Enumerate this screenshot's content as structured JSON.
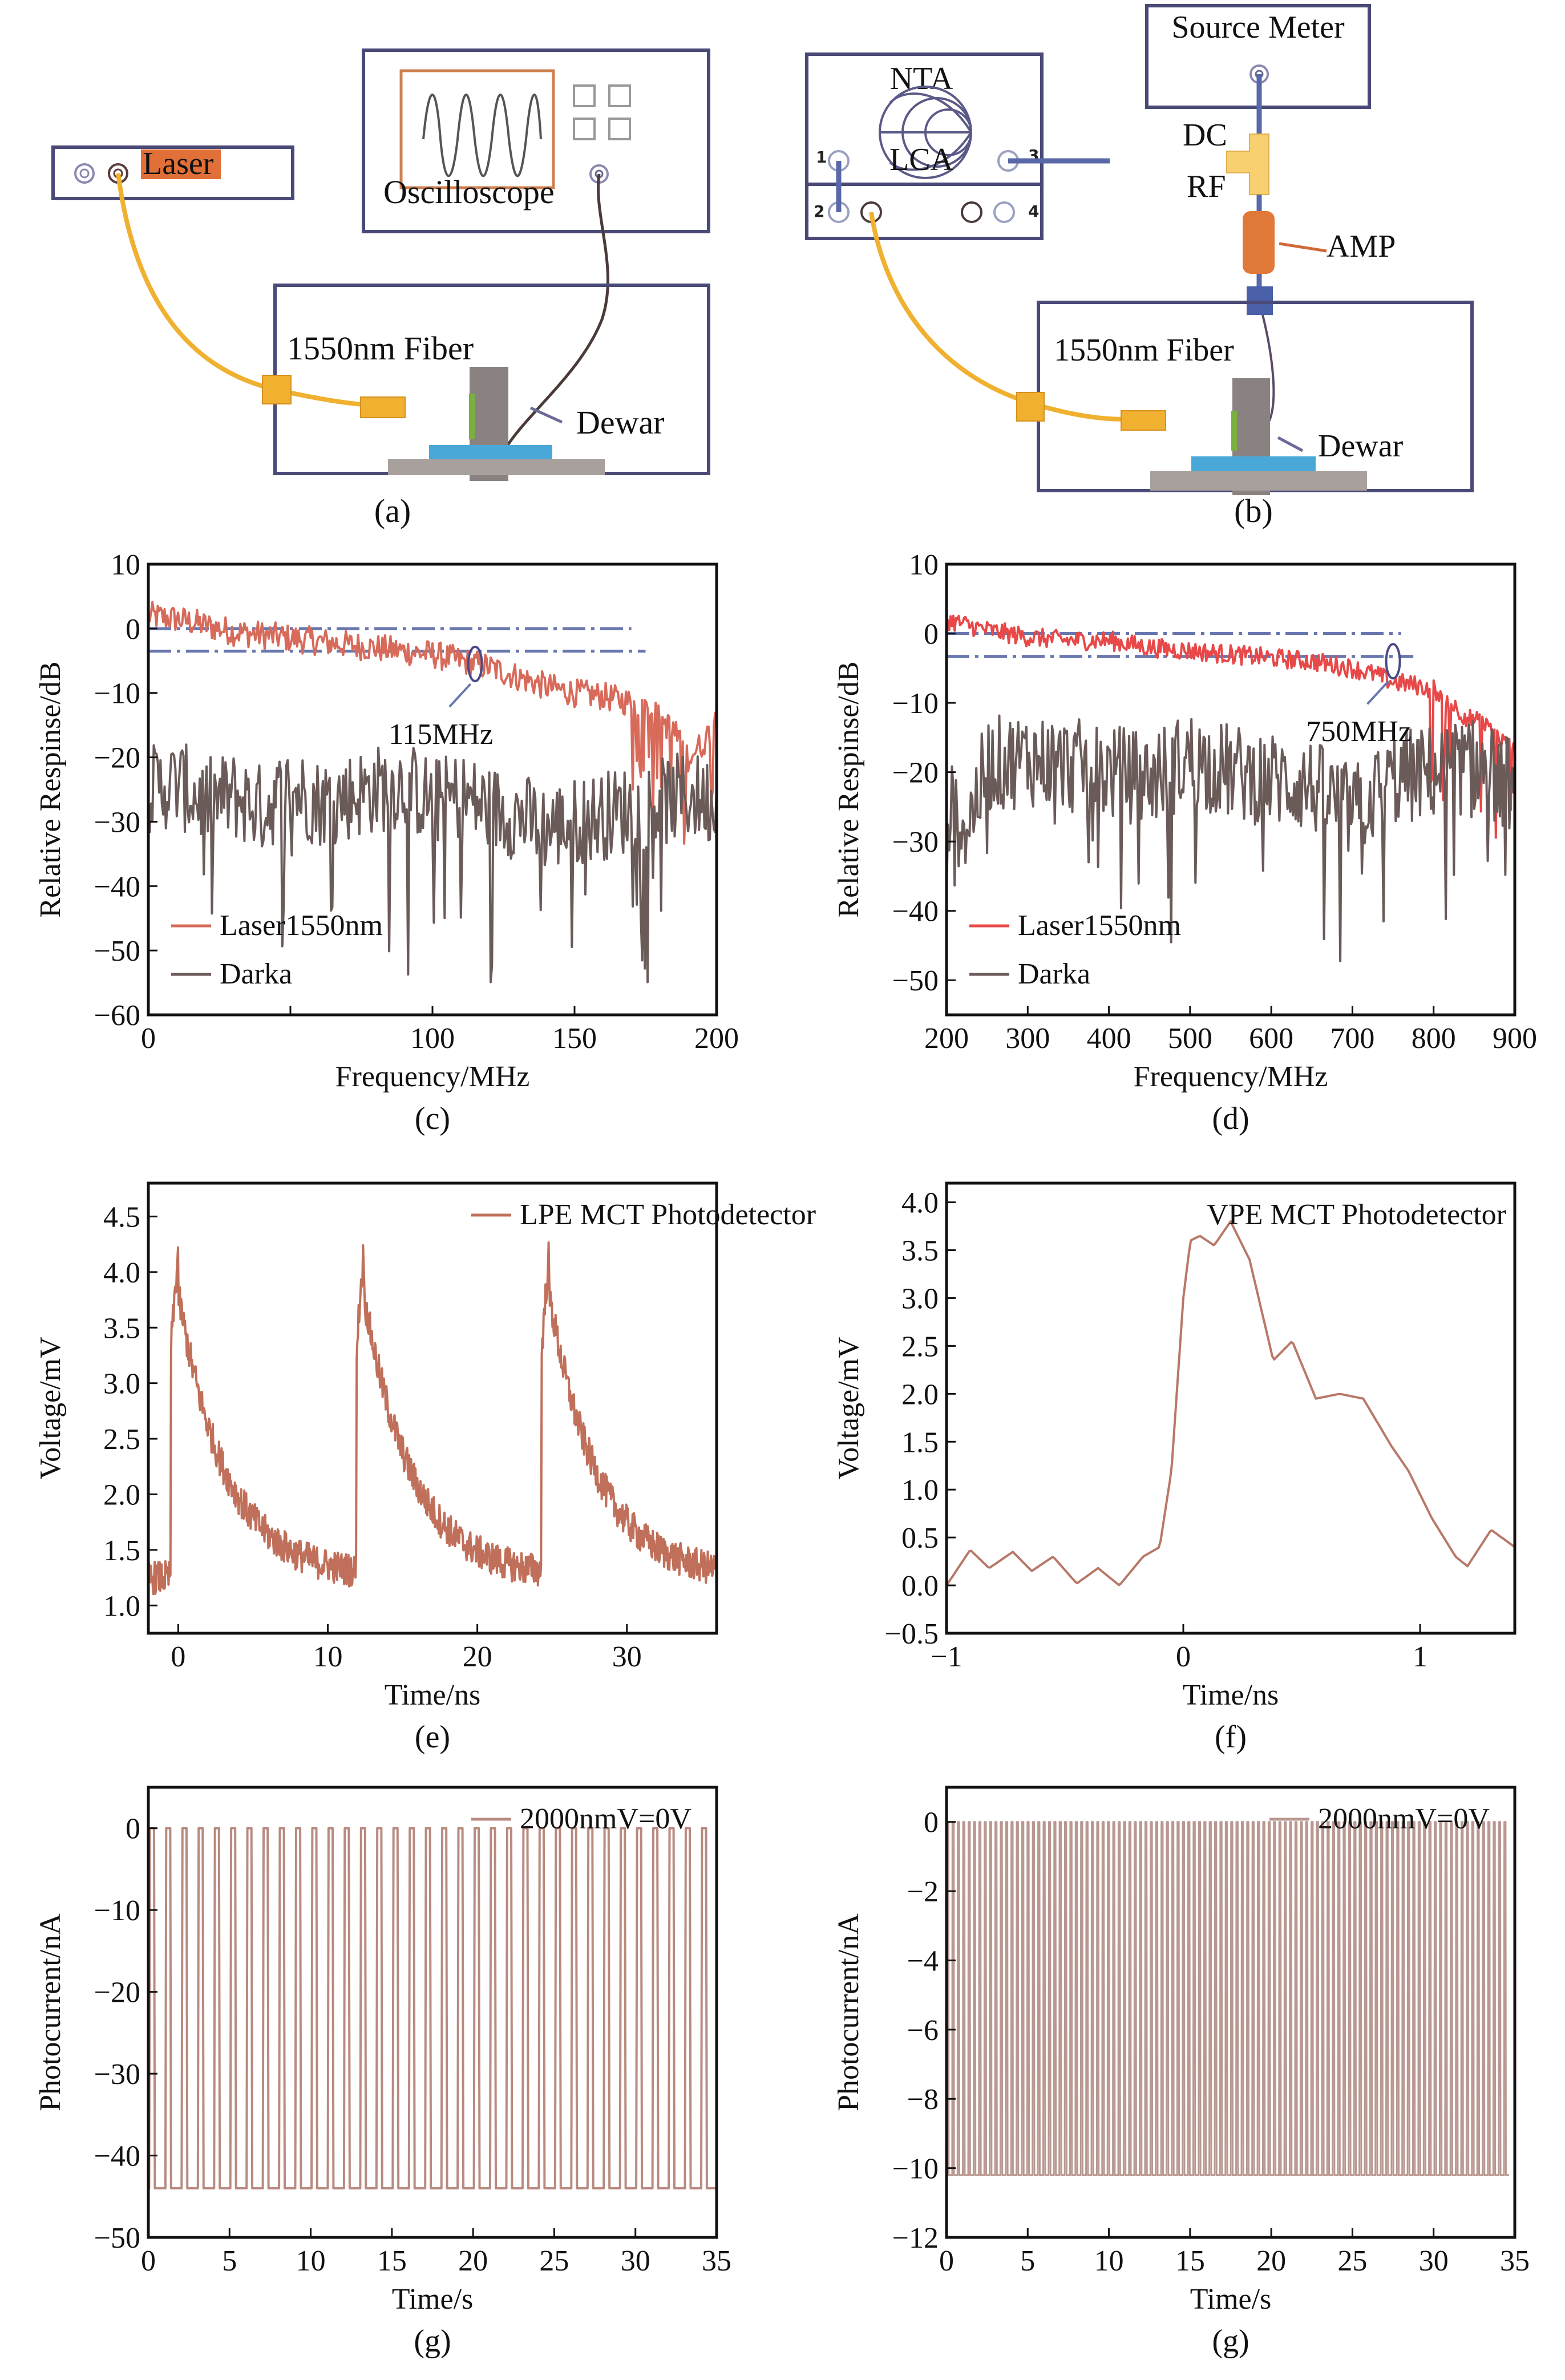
{
  "panels": {
    "a": {
      "caption": "(a)",
      "laser_label": "Laser",
      "oscilloscope_label": "Oscilloscope",
      "fiber_label": "1550nm Fiber",
      "dewar_label": "Dewar"
    },
    "b": {
      "caption": "(b)",
      "source_meter_label": "Source Meter",
      "nta_label": "NTA",
      "lca_label": "LCA",
      "port_labels": [
        "1",
        "2",
        "3",
        "4"
      ],
      "dc_label": "DC",
      "rf_label": "RF",
      "amp_label": "AMP",
      "fiber_label": "1550nm Fiber",
      "dewar_label": "Dewar"
    }
  },
  "colors": {
    "frame": "#4a4a78",
    "fiber": "#f0b030",
    "laser_red": "#e85050",
    "trace_brown": "#c0705a",
    "dark_gray": "#6a5a58",
    "dashed_blue": "#6a78b0",
    "amp_orange": "#e07838",
    "stage_blue": "#4aa8d8",
    "stage_gray": "#a8a09c",
    "dewar_gray": "#8a8280"
  },
  "chart_data": [
    {
      "id": "c",
      "caption": "(c)",
      "type": "line",
      "xlabel": "Frequency/MHz",
      "ylabel": "Relative Respinse/dB",
      "xlim": [
        0,
        200
      ],
      "ylim": [
        -60,
        10
      ],
      "xticks": [
        0,
        50,
        100,
        150,
        200
      ],
      "xtick_labels": [
        "0",
        "",
        "100",
        "150",
        "200"
      ],
      "yticks": [
        10,
        0,
        -10,
        -20,
        -30,
        -40,
        -50,
        -60
      ],
      "ytick_labels": [
        "10",
        "0",
        "−10",
        "−20",
        "−30",
        "−40",
        "−50",
        "−60"
      ],
      "reference_lines": [
        0,
        -3.5
      ],
      "reference_xmax": [
        170,
        175
      ],
      "annotation": {
        "text": "115MHz",
        "x": 115,
        "y": -5.5
      },
      "legend": {
        "placement": "bottom-left",
        "entries": [
          "Laser1550nm",
          "Darka"
        ]
      },
      "series": [
        {
          "name": "Laser1550nm",
          "color": "#d86a5a",
          "x": [
            0,
            10,
            20,
            30,
            40,
            50,
            60,
            70,
            80,
            90,
            100,
            110,
            115,
            120,
            130,
            140,
            150,
            160,
            170,
            175,
            180,
            185,
            190,
            195,
            200
          ],
          "y": [
            2,
            1.5,
            0.5,
            -0.5,
            -1,
            -1.5,
            -2,
            -2.5,
            -3,
            -3.5,
            -4,
            -5,
            -5.5,
            -6,
            -7.5,
            -9,
            -10,
            -10.5,
            -11.5,
            -12,
            -14,
            -16,
            -20,
            -18,
            -14
          ]
        },
        {
          "name": "Darka",
          "color": "#6a5a58",
          "x": [
            0,
            10,
            20,
            30,
            40,
            50,
            60,
            70,
            80,
            90,
            100,
            110,
            120,
            130,
            140,
            150,
            160,
            170,
            180,
            190,
            200
          ],
          "y": [
            -25,
            -24,
            -27,
            -26,
            -28,
            -25,
            -27,
            -26,
            -25,
            -24,
            -27,
            -26,
            -28,
            -29,
            -31,
            -30,
            -29,
            -28,
            -27,
            -26,
            -27
          ]
        }
      ]
    },
    {
      "id": "d",
      "caption": "(d)",
      "type": "line",
      "xlabel": "Frequency/MHz",
      "ylabel": "Relative Respinse/dB",
      "xlim": [
        200,
        900
      ],
      "ylim": [
        -55,
        10
      ],
      "xticks": [
        200,
        300,
        400,
        500,
        600,
        700,
        800,
        900
      ],
      "xtick_labels": [
        "200",
        "300",
        "400",
        "500",
        "600",
        "700",
        "800",
        "900"
      ],
      "yticks": [
        10,
        0,
        -10,
        -20,
        -30,
        -40,
        -50
      ],
      "ytick_labels": [
        "10",
        "0",
        "−10",
        "−20",
        "−30",
        "−40",
        "−50"
      ],
      "reference_lines": [
        0,
        -3.3
      ],
      "reference_xmax": [
        760,
        775
      ],
      "annotation": {
        "text": "750MHz",
        "x": 750,
        "y": -4
      },
      "legend": {
        "placement": "bottom-left",
        "entries": [
          "Laser1550nm",
          "Darka"
        ]
      },
      "series": [
        {
          "name": "Laser1550nm",
          "color": "#e84848",
          "x": [
            200,
            250,
            300,
            350,
            400,
            450,
            500,
            550,
            600,
            650,
            700,
            730,
            750,
            780,
            800,
            820,
            840,
            860,
            880,
            900
          ],
          "y": [
            2,
            0.5,
            -0.5,
            -1,
            -1,
            -2,
            -2.5,
            -3,
            -3.5,
            -4,
            -5,
            -6,
            -7,
            -7.5,
            -8,
            -10,
            -12,
            -13,
            -15,
            -17
          ]
        },
        {
          "name": "Darka",
          "color": "#6a5a58",
          "x": [
            200,
            225,
            250,
            300,
            350,
            400,
            450,
            500,
            550,
            600,
            650,
            700,
            750,
            800,
            850,
            900
          ],
          "y": [
            -25,
            -28,
            -19,
            -18,
            -19,
            -20,
            -21,
            -18,
            -20,
            -21,
            -22,
            -26,
            -21,
            -20,
            -19,
            -22
          ]
        }
      ]
    },
    {
      "id": "e",
      "caption": "(e)",
      "type": "line",
      "xlabel": "Time/ns",
      "ylabel": "Voltage/mV",
      "xlim": [
        -2,
        36
      ],
      "ylim": [
        0.75,
        4.8
      ],
      "xticks": [
        0,
        10,
        20,
        30
      ],
      "xtick_labels": [
        "0",
        "10",
        "20",
        "30"
      ],
      "yticks": [
        1.0,
        1.5,
        2.0,
        2.5,
        3.0,
        3.5,
        4.0,
        4.5
      ],
      "ytick_labels": [
        "1.0",
        "1.5",
        "2.0",
        "2.5",
        "3.0",
        "3.5",
        "4.0",
        "4.5"
      ],
      "legend": {
        "placement": "top-right",
        "entries": [
          "LPE MCT Photodetector"
        ]
      },
      "pulse_period_ns": 12.4,
      "pulse_peaks_ns": [
        0,
        12.4,
        24.8
      ],
      "series": [
        {
          "name": "LPE MCT Photodetector",
          "color": "#c0705a",
          "peak": 4.2,
          "baseline": 1.25,
          "pre_peak_plateau": 3.3
        }
      ]
    },
    {
      "id": "f",
      "caption": "(f)",
      "type": "line",
      "xlabel": "Time/ns",
      "ylabel": "Voltage/mV",
      "xlim": [
        -1,
        1.4
      ],
      "ylim": [
        -0.5,
        4.2
      ],
      "xticks": [
        -1,
        0,
        1
      ],
      "xtick_labels": [
        "−1",
        "0",
        "1"
      ],
      "yticks": [
        -0.5,
        0.0,
        0.5,
        1.0,
        1.5,
        2.0,
        2.5,
        3.0,
        3.5,
        4.0
      ],
      "ytick_labels": [
        "−0.5",
        "0.0",
        "0.5",
        "1.0",
        "1.5",
        "2.0",
        "2.5",
        "3.0",
        "3.5",
        "4.0"
      ],
      "legend": {
        "placement": "top-right",
        "entries": [
          "VPE MCT Photodetector"
        ]
      },
      "series": [
        {
          "name": "VPE MCT Photodetector",
          "color": "#b87868",
          "x": [
            -1,
            -0.9,
            -0.82,
            -0.72,
            -0.64,
            -0.55,
            -0.45,
            -0.36,
            -0.27,
            -0.17,
            -0.1,
            -0.05,
            0,
            0.03,
            0.07,
            0.13,
            0.2,
            0.28,
            0.38,
            0.46,
            0.56,
            0.66,
            0.76,
            0.88,
            0.95,
            1.05,
            1.15,
            1.2,
            1.3,
            1.4
          ],
          "y": [
            0,
            0.37,
            0.18,
            0.35,
            0.15,
            0.3,
            0.02,
            0.18,
            0,
            0.3,
            0.4,
            1.2,
            3.0,
            3.6,
            3.65,
            3.55,
            3.8,
            3.4,
            2.35,
            2.55,
            1.95,
            2.0,
            1.95,
            1.45,
            1.2,
            0.7,
            0.3,
            0.2,
            0.58,
            0.4
          ]
        }
      ]
    },
    {
      "id": "g1",
      "caption": "(g)",
      "type": "line",
      "xlabel": "Time/s",
      "ylabel": "Photocurrent/nA",
      "xlim": [
        0,
        35
      ],
      "ylim": [
        -50,
        5
      ],
      "xticks": [
        0,
        5,
        10,
        15,
        20,
        25,
        30,
        35
      ],
      "xtick_labels": [
        "0",
        "5",
        "10",
        "15",
        "20",
        "25",
        "30",
        "35"
      ],
      "yticks": [
        0,
        -10,
        -20,
        -30,
        -40,
        -50
      ],
      "ytick_labels": [
        "0",
        "−10",
        "−20",
        "−30",
        "−40",
        "−50"
      ],
      "legend": {
        "placement": "top-right",
        "entries": [
          "2000nmV=0V"
        ]
      },
      "series": [
        {
          "name": "2000nmV=0V",
          "color": "#b88a80",
          "waveform": "square",
          "high": 0,
          "low": -44,
          "period_s": 1.0,
          "pulses": 35
        }
      ]
    },
    {
      "id": "g2",
      "caption": "(g)",
      "type": "line",
      "xlabel": "Time/s",
      "ylabel": "Photocurrent/nA",
      "xlim": [
        0,
        35
      ],
      "ylim": [
        -12,
        1
      ],
      "xticks": [
        0,
        5,
        10,
        15,
        20,
        25,
        30,
        35
      ],
      "xtick_labels": [
        "0",
        "5",
        "10",
        "15",
        "20",
        "25",
        "30",
        "35"
      ],
      "yticks": [
        0,
        -2,
        -4,
        -6,
        -8,
        -10,
        -12
      ],
      "ytick_labels": [
        "0",
        "−2",
        "−4",
        "−6",
        "−8",
        "−10",
        "−12"
      ],
      "legend": {
        "placement": "top-right",
        "entries": [
          "2000nmV=0V"
        ]
      },
      "series": [
        {
          "name": "2000nmV=0V",
          "color": "#b89890",
          "waveform": "square",
          "high": 0,
          "low": -10.2,
          "period_s": 0.33,
          "pulses": 105
        }
      ]
    }
  ]
}
